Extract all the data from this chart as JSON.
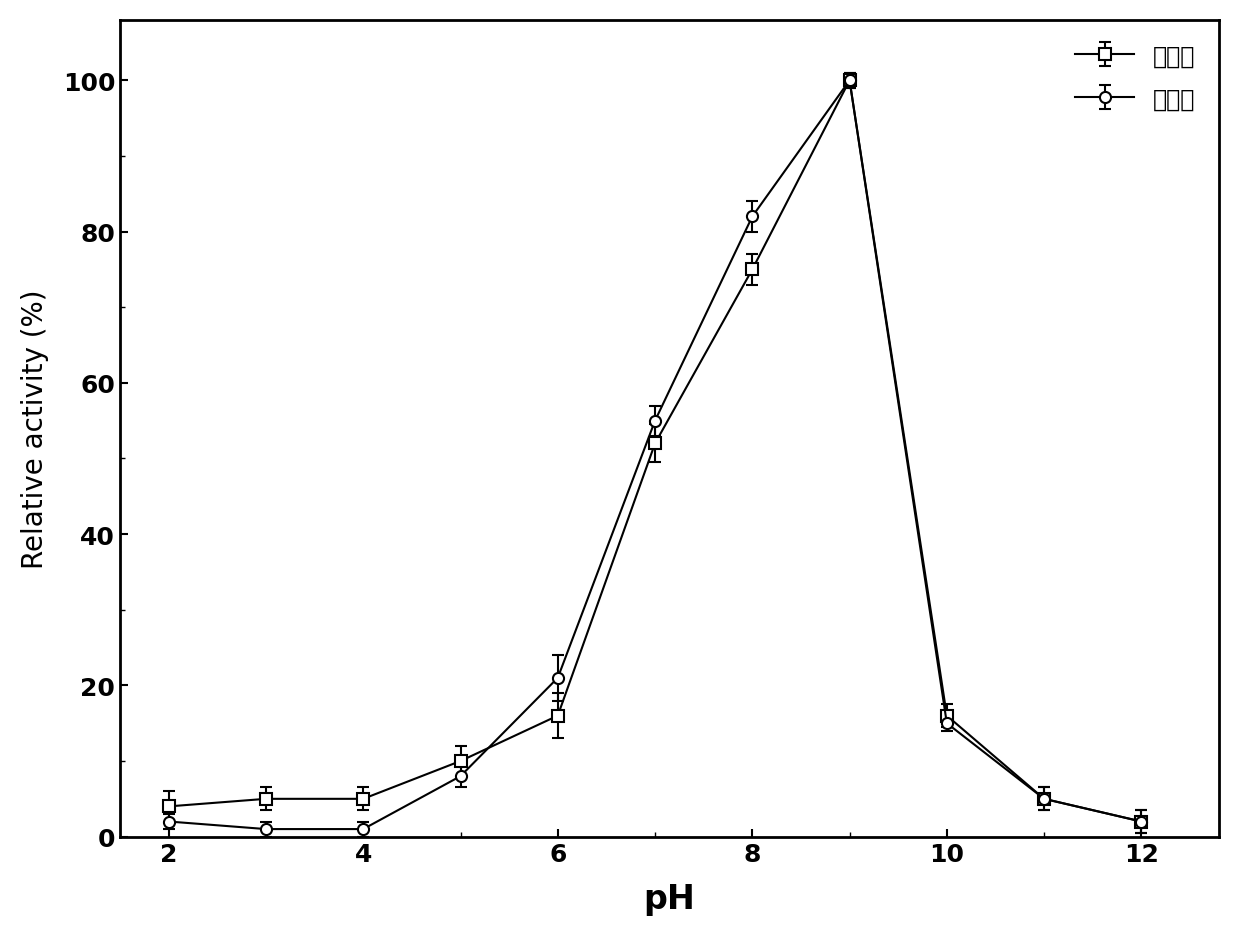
{
  "pH": [
    2,
    3,
    4,
    5,
    6,
    7,
    8,
    9,
    10,
    11,
    12
  ],
  "before_mutation": [
    4,
    5,
    5,
    10,
    16,
    52,
    75,
    100,
    16,
    5,
    2
  ],
  "after_mutation": [
    2,
    1,
    1,
    8,
    21,
    55,
    82,
    100,
    15,
    5,
    2
  ],
  "before_err": [
    2,
    1.5,
    1.5,
    2,
    3,
    2.5,
    2,
    1,
    1.5,
    1.5,
    1.5
  ],
  "after_err": [
    1,
    1,
    1,
    1.5,
    3,
    2,
    2,
    1,
    1,
    1.5,
    1.5
  ],
  "xlabel": "pH",
  "ylabel": "Relative activity (%)",
  "legend_before": "突变前",
  "legend_after": "突变后",
  "ylim": [
    0,
    108
  ],
  "xlim": [
    1.5,
    12.8
  ],
  "xticks": [
    2,
    4,
    6,
    8,
    10,
    12
  ],
  "yticks": [
    0,
    20,
    40,
    60,
    80,
    100
  ],
  "line_color": "#000000",
  "bg_color": "#ffffff",
  "font_size_axis_label": 20,
  "font_size_ticks": 18,
  "font_size_legend": 17,
  "font_size_xlabel": 24
}
